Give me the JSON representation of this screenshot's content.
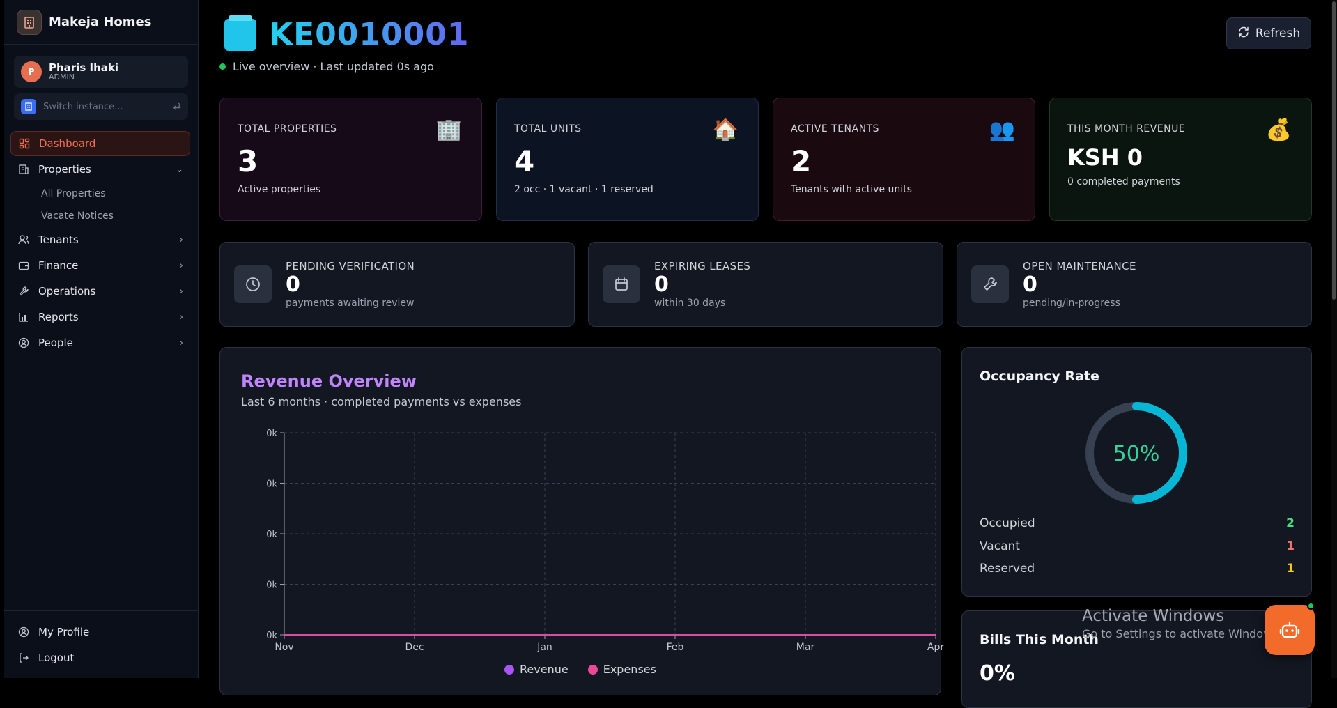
{
  "brand": {
    "name": "Makeja Homes"
  },
  "user": {
    "initial": "P",
    "name": "Pharis Ihaki",
    "role": "ADMIN"
  },
  "switcher": {
    "placeholder": "Switch instance..."
  },
  "nav": {
    "dashboard": "Dashboard",
    "properties": "Properties",
    "all_properties": "All Properties",
    "vacate_notices": "Vacate Notices",
    "tenants": "Tenants",
    "finance": "Finance",
    "operations": "Operations",
    "reports": "Reports",
    "people": "People",
    "my_profile": "My Profile",
    "logout": "Logout"
  },
  "header": {
    "title": "KE0010001",
    "live_text": "Live overview · Last updated 0s ago",
    "refresh_label": "Refresh"
  },
  "stats": [
    {
      "label": "TOTAL PROPERTIES",
      "value": "3",
      "sub": "Active properties",
      "icon": "🏢"
    },
    {
      "label": "TOTAL UNITS",
      "value": "4",
      "sub": "2 occ · 1 vacant · 1 reserved",
      "icon": "🏠"
    },
    {
      "label": "ACTIVE TENANTS",
      "value": "2",
      "sub": "Tenants with active units",
      "icon": "👥"
    },
    {
      "label": "THIS MONTH REVENUE",
      "value": "KSH 0",
      "sub": "0 completed payments",
      "icon": "💰"
    }
  ],
  "minis": [
    {
      "label": "PENDING VERIFICATION",
      "value": "0",
      "sub": "payments awaiting review",
      "icon": "clock-icon"
    },
    {
      "label": "EXPIRING LEASES",
      "value": "0",
      "sub": "within 30 days",
      "icon": "calendar-icon"
    },
    {
      "label": "OPEN MAINTENANCE",
      "value": "0",
      "sub": "pending/in-progress",
      "icon": "wrench-icon"
    }
  ],
  "revenue": {
    "title": "Revenue Overview",
    "subtitle": "Last 6 months · completed payments vs expenses"
  },
  "chart_data": {
    "type": "line",
    "categories": [
      "Nov",
      "Dec",
      "Jan",
      "Feb",
      "Mar",
      "Apr"
    ],
    "y_ticks": [
      "0k",
      "0k",
      "0k",
      "0k",
      "0k"
    ],
    "series": [
      {
        "name": "Revenue",
        "values": [
          0,
          0,
          0,
          0,
          0,
          0
        ],
        "color": "#a855f7"
      },
      {
        "name": "Expenses",
        "values": [
          0,
          0,
          0,
          0,
          0,
          0
        ],
        "color": "#ec4899"
      }
    ],
    "grid": true,
    "legend": "bottom"
  },
  "occupancy": {
    "title": "Occupancy Rate",
    "percent_text": "50%",
    "fraction": 0.5,
    "rows": [
      {
        "label": "Occupied",
        "value": "2",
        "color": "#4ade80"
      },
      {
        "label": "Vacant",
        "value": "1",
        "color": "#f87171"
      },
      {
        "label": "Reserved",
        "value": "1",
        "color": "#facc15"
      }
    ]
  },
  "bills": {
    "title": "Bills This Month",
    "value": "0%"
  },
  "watermark": {
    "line1": "Activate Windows",
    "line2": "Go to Settings to activate Windows."
  }
}
